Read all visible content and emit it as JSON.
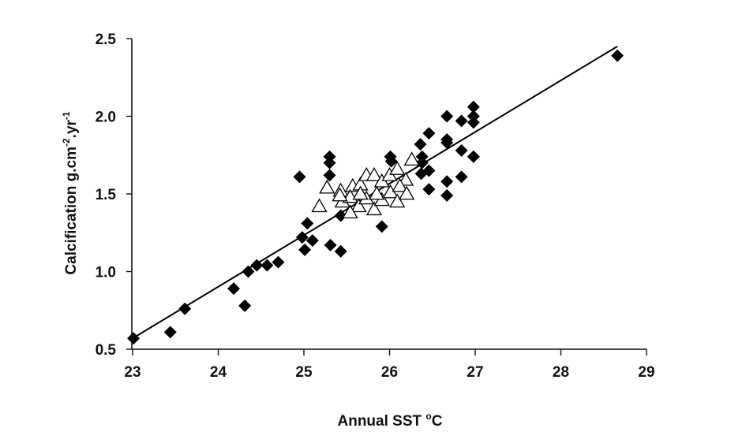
{
  "chart_data": {
    "type": "scatter",
    "title": "",
    "xlabel": {
      "main": "Annual SST ",
      "sup": "o",
      "tail": "C"
    },
    "ylabel": {
      "parts": [
        {
          "t": "Calcification g.cm",
          "sup": false
        },
        {
          "t": "-2",
          "sup": true
        },
        {
          "t": ".yr",
          "sup": false
        },
        {
          "t": "-1",
          "sup": true
        }
      ]
    },
    "xlim": [
      23,
      29
    ],
    "ylim": [
      0.5,
      2.5
    ],
    "xticks": [
      "23",
      "24",
      "25",
      "26",
      "27",
      "28",
      "29"
    ],
    "yticks": [
      "0.5",
      "1.0",
      "1.5",
      "2.0",
      "2.5"
    ],
    "grid": false,
    "colors": {
      "diamond": "#000000",
      "triangle_fill": "#ffffff",
      "triangle_stroke": "#000000",
      "line": "#000000"
    },
    "series": [
      {
        "marker": "diamond",
        "points": [
          [
            23.01,
            0.57
          ],
          [
            23.44,
            0.61
          ],
          [
            23.61,
            0.76
          ],
          [
            24.18,
            0.89
          ],
          [
            24.31,
            0.78
          ],
          [
            24.35,
            1.0
          ],
          [
            24.45,
            1.04
          ],
          [
            24.57,
            1.04
          ],
          [
            24.7,
            1.06
          ],
          [
            24.95,
            1.61
          ],
          [
            24.98,
            1.22
          ],
          [
            25.01,
            1.14
          ],
          [
            25.04,
            1.31
          ],
          [
            25.1,
            1.2
          ],
          [
            25.3,
            1.74
          ],
          [
            25.3,
            1.7
          ],
          [
            25.3,
            1.62
          ],
          [
            25.31,
            1.17
          ],
          [
            25.43,
            1.13
          ],
          [
            25.43,
            1.36
          ],
          [
            25.91,
            1.29
          ],
          [
            26.01,
            1.74
          ],
          [
            26.02,
            1.71
          ],
          [
            26.36,
            1.82
          ],
          [
            26.38,
            1.74
          ],
          [
            26.38,
            1.7
          ],
          [
            26.37,
            1.63
          ],
          [
            26.46,
            1.89
          ],
          [
            26.46,
            1.65
          ],
          [
            26.46,
            1.53
          ],
          [
            26.67,
            2.0
          ],
          [
            26.67,
            1.85
          ],
          [
            26.67,
            1.83
          ],
          [
            26.67,
            1.58
          ],
          [
            26.67,
            1.49
          ],
          [
            26.84,
            1.97
          ],
          [
            26.84,
            1.78
          ],
          [
            26.84,
            1.61
          ],
          [
            26.98,
            2.06
          ],
          [
            26.98,
            2.0
          ],
          [
            26.98,
            1.96
          ],
          [
            26.98,
            1.74
          ],
          [
            28.66,
            2.39
          ]
        ]
      },
      {
        "marker": "triangle",
        "points": [
          [
            25.27,
            1.54
          ],
          [
            25.18,
            1.42
          ],
          [
            25.43,
            1.52
          ],
          [
            25.57,
            1.55
          ],
          [
            25.66,
            1.56
          ],
          [
            25.73,
            1.62
          ],
          [
            25.82,
            1.62
          ],
          [
            25.91,
            1.58
          ],
          [
            26.0,
            1.62
          ],
          [
            26.09,
            1.66
          ],
          [
            26.19,
            1.59
          ],
          [
            26.26,
            1.72
          ],
          [
            26.01,
            1.51
          ],
          [
            26.09,
            1.45
          ],
          [
            25.82,
            1.4
          ],
          [
            25.64,
            1.42
          ],
          [
            25.54,
            1.38
          ],
          [
            25.45,
            1.45
          ],
          [
            25.91,
            1.46
          ],
          [
            25.73,
            1.47
          ],
          [
            25.54,
            1.48
          ],
          [
            26.12,
            1.55
          ],
          [
            25.85,
            1.5
          ],
          [
            25.66,
            1.5
          ],
          [
            25.42,
            1.49
          ],
          [
            26.2,
            1.5
          ]
        ]
      }
    ],
    "trendline": {
      "from": [
        23.03,
        0.58
      ],
      "to": [
        28.66,
        2.45
      ]
    }
  }
}
